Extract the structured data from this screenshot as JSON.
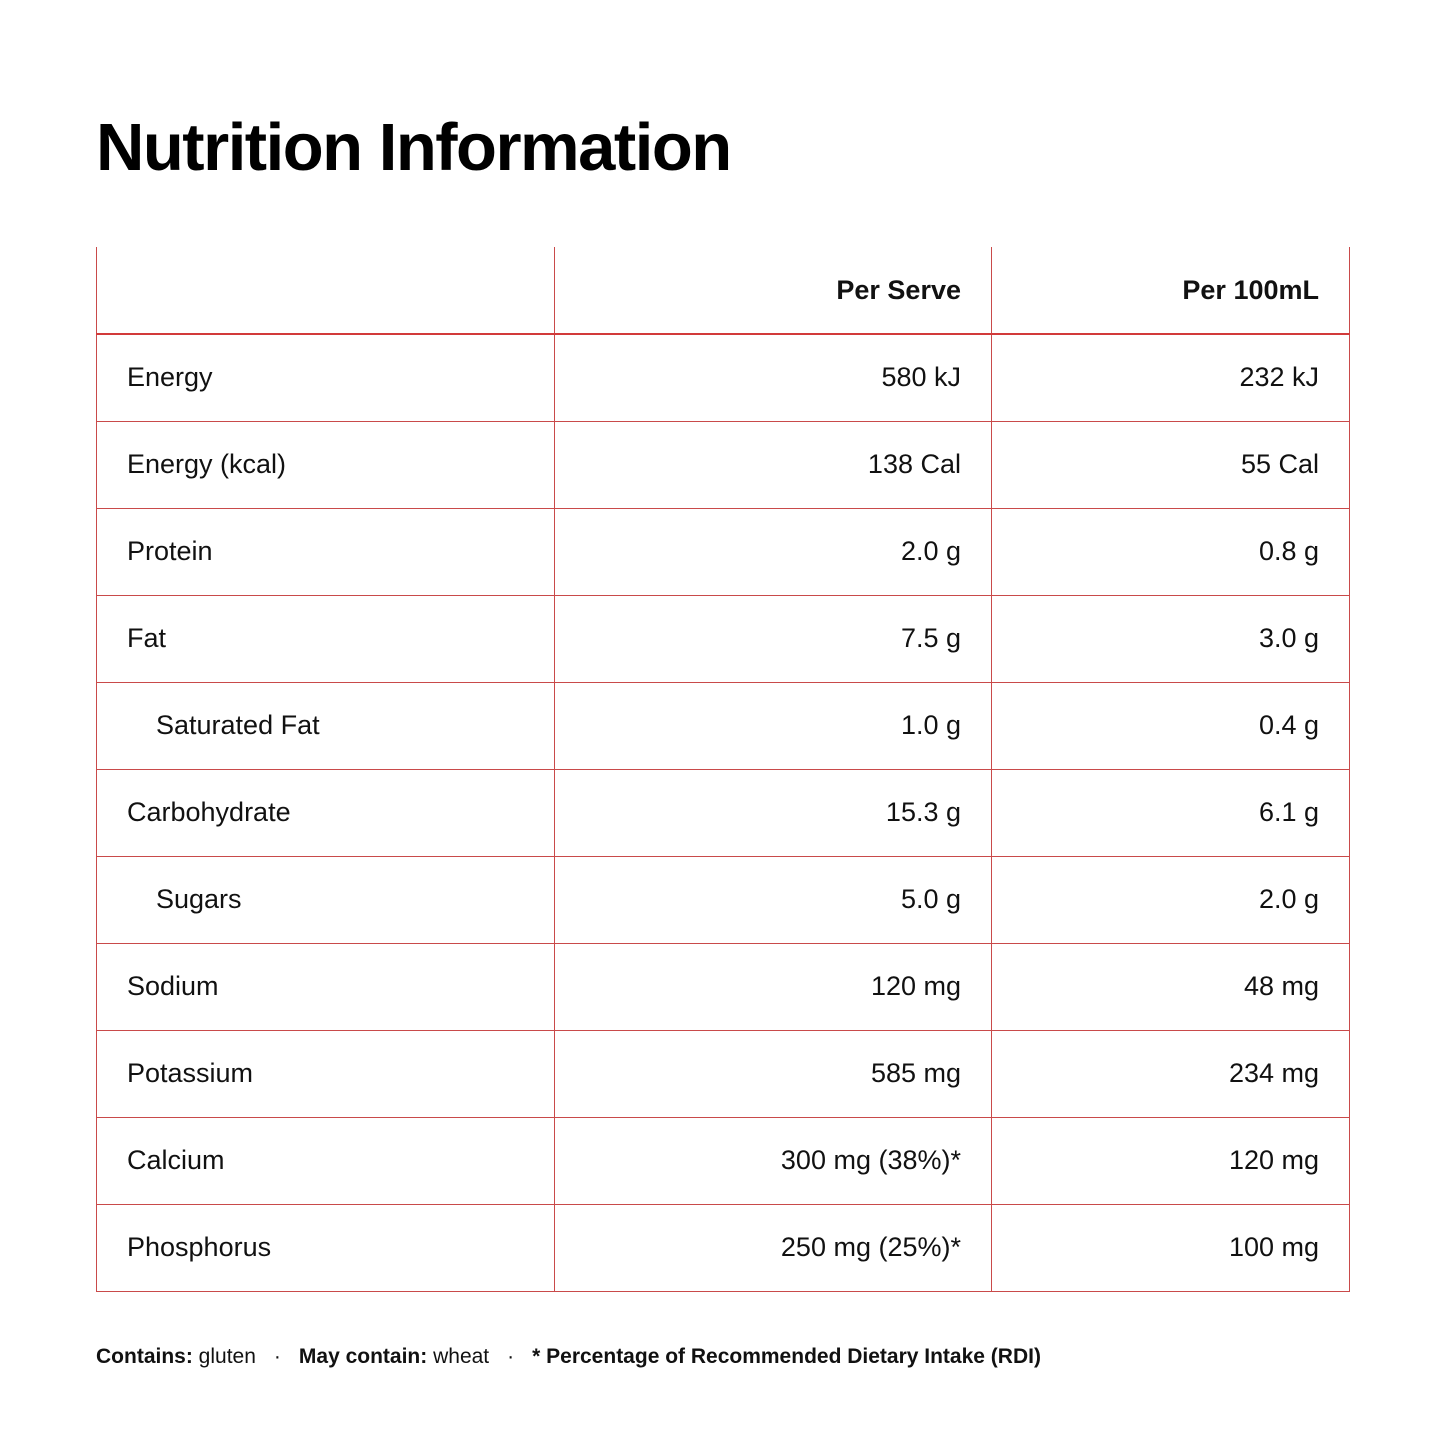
{
  "header": {
    "title": "Nutrition Information"
  },
  "table": {
    "columns": [
      "Per Serve",
      "Per 100mL"
    ],
    "rows": [
      [
        "Energy",
        "580 kJ",
        "232 kJ"
      ],
      [
        "Energy (kcal)",
        "138 Cal",
        "55 Cal"
      ],
      [
        "Protein",
        "2.0 g",
        "0.8 g"
      ],
      [
        "Fat",
        "7.5 g",
        "3.0 g"
      ],
      [
        "Saturated Fat",
        "1.0 g",
        "0.4 g"
      ],
      [
        "Carbohydrate",
        "15.3 g",
        "6.1 g"
      ],
      [
        "Sugars",
        "5.0 g",
        "2.0 g"
      ],
      [
        "Sodium",
        "120 mg",
        "48 mg"
      ],
      [
        "Potassium",
        "585 mg",
        "234 mg"
      ],
      [
        "Calcium",
        "300 mg (38%)*",
        "120 mg"
      ],
      [
        "Phosphorus",
        "250 mg (25%)*",
        "100 mg"
      ]
    ]
  },
  "footer": {
    "separator": "·",
    "contains": {
      "label": "Contains:",
      "value": "gluten"
    },
    "may_contain": {
      "label": "May contain:",
      "value": "wheat"
    },
    "note": "* Percentage of Recommended Dietary Intake (RDI)"
  }
}
